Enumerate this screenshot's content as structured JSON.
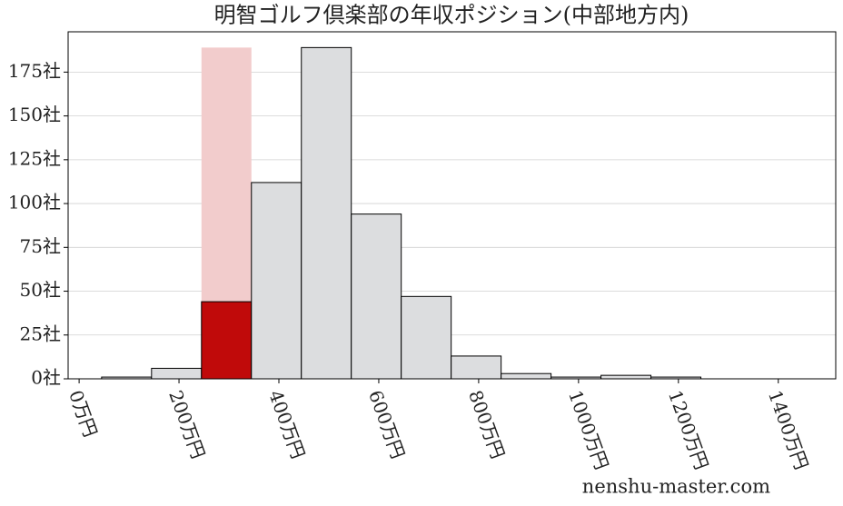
{
  "chart_data": {
    "type": "histogram",
    "title": "明智ゴルフ倶楽部の年収ポジション(中部地方内)",
    "bins": [
      45,
      145,
      245,
      345,
      445,
      545,
      645,
      745,
      845,
      945,
      1045,
      1145,
      1245
    ],
    "values": [
      1,
      6,
      44,
      112,
      189,
      94,
      47,
      13,
      3,
      1,
      2,
      1
    ],
    "colors": [
      "#dcdddf",
      "#dcdddf",
      "#c00a0a",
      "#dcdddf",
      "#dcdddf",
      "#dcdddf",
      "#dcdddf",
      "#dcdddf",
      "#dcdddf",
      "#dcdddf",
      "#dcdddf",
      "#dcdddf"
    ],
    "highlight_color": "#f2cccc",
    "xlim": [
      -22,
      1515
    ],
    "ylim": [
      0,
      198
    ],
    "xticks": [
      {
        "value": 0,
        "label": "0万円"
      },
      {
        "value": 200,
        "label": "200万円"
      },
      {
        "value": 400,
        "label": "400万円"
      },
      {
        "value": 600,
        "label": "600万円"
      },
      {
        "value": 800,
        "label": "800万円"
      },
      {
        "value": 1000,
        "label": "1000万円"
      },
      {
        "value": 1200,
        "label": "1200万円"
      },
      {
        "value": 1400,
        "label": "1400万円"
      }
    ],
    "yticks": [
      {
        "value": 0,
        "label": "0社"
      },
      {
        "value": 25,
        "label": "25社"
      },
      {
        "value": 50,
        "label": "50社"
      },
      {
        "value": 75,
        "label": "75社"
      },
      {
        "value": 100,
        "label": "100社"
      },
      {
        "value": 125,
        "label": "125社"
      },
      {
        "value": 150,
        "label": "150社"
      },
      {
        "value": 175,
        "label": "175社"
      }
    ],
    "grid": true,
    "watermark": "nenshu-master.com"
  }
}
